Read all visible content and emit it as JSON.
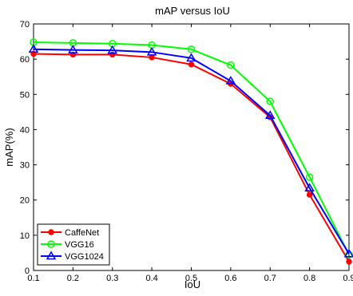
{
  "chart_data": {
    "type": "line",
    "title": "mAP versus IoU",
    "xlabel": "IoU",
    "ylabel": "mAP(%)",
    "xlim": [
      0.1,
      0.9
    ],
    "ylim": [
      0,
      70
    ],
    "xticks": [
      "0.1",
      "0.2",
      "0.3",
      "0.4",
      "0.5",
      "0.6",
      "0.7",
      "0.8",
      "0.9"
    ],
    "yticks": [
      "0",
      "10",
      "20",
      "30",
      "40",
      "50",
      "60",
      "70"
    ],
    "grid": false,
    "legend_position": "bottom-left",
    "x": [
      0.1,
      0.2,
      0.3,
      0.4,
      0.5,
      0.6,
      0.7,
      0.8,
      0.9
    ],
    "series": [
      {
        "name": "CaffeNet",
        "color": "#ff0000",
        "marker": "dot",
        "values": [
          61.5,
          61.3,
          61.3,
          60.5,
          58.5,
          53.0,
          43.5,
          21.5,
          2.5
        ]
      },
      {
        "name": "VGG16",
        "color": "#00ff00",
        "marker": "circle",
        "values": [
          64.8,
          64.6,
          64.4,
          64.0,
          62.8,
          58.3,
          48.0,
          26.5,
          4.5
        ]
      },
      {
        "name": "VGG1024",
        "color": "#0000ff",
        "marker": "triangle",
        "values": [
          62.8,
          62.6,
          62.5,
          62.0,
          60.3,
          53.8,
          44.0,
          23.4,
          4.7
        ]
      }
    ]
  }
}
